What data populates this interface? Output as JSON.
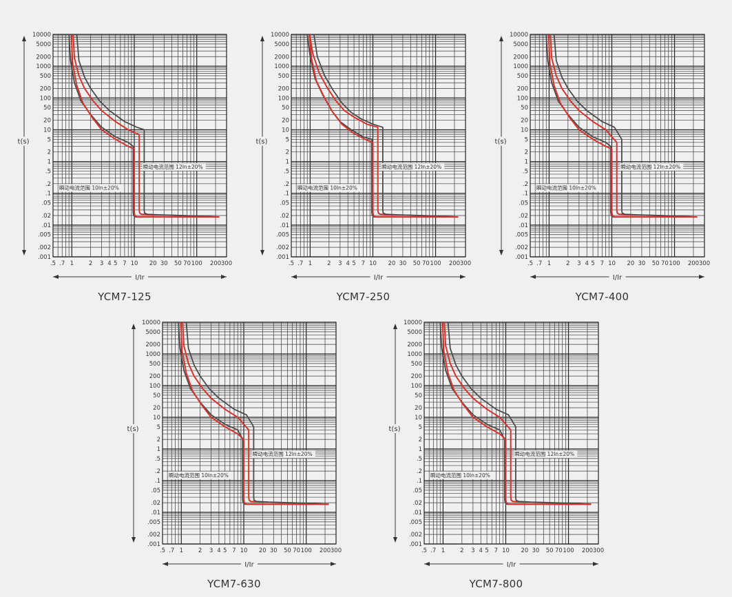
{
  "colors": {
    "background": "#f0f0f0",
    "grid": "#3a3a3a",
    "curve_red": "#d6332c",
    "curve_dark": "#4a4a4a"
  },
  "chart_data": [
    {
      "type": "line",
      "title": "YCM7-125",
      "xlabel": "I/Ir",
      "ylabel": "t(s)",
      "xscale": "log",
      "yscale": "log",
      "xlim": [
        0.5,
        300
      ],
      "ylim": [
        0.001,
        10000
      ],
      "xticks": [
        ".5",
        ".7",
        "1",
        "2",
        "3",
        "4",
        "5",
        "7",
        "10",
        "20",
        "30",
        "50",
        "70",
        "100",
        "200",
        "300"
      ],
      "yticks": [
        "10000",
        "5000",
        "2000",
        "1000",
        "500",
        "200",
        "100",
        "50",
        "20",
        "10",
        "5",
        "2",
        "1",
        ".5",
        ".2",
        ".1",
        ".05",
        ".02",
        ".01",
        ".005",
        ".002",
        ".001"
      ],
      "annotations": [
        "瞬动电流范围 12In±20%",
        "瞬动电流范围 10In±20%"
      ],
      "grid": true,
      "series": [
        {
          "color": "red",
          "x": [
            1.05,
            1.1,
            1.3,
            1.6,
            2.2,
            3,
            5,
            8,
            12,
            12,
            12.2,
            13,
            20,
            50,
            100,
            230
          ],
          "y": [
            10000,
            1800,
            500,
            200,
            80,
            40,
            18,
            10,
            7,
            0.03,
            0.024,
            0.022,
            0.021,
            0.02,
            0.019,
            0.018
          ]
        },
        {
          "color": "dark",
          "x": [
            1.2,
            1.3,
            1.6,
            2,
            2.8,
            4,
            7,
            11,
            14.4,
            14.4,
            14.6,
            16,
            25,
            60,
            120,
            230
          ],
          "y": [
            10000,
            1500,
            450,
            200,
            80,
            40,
            18,
            12,
            10,
            0.03,
            0.024,
            0.022,
            0.021,
            0.02,
            0.019,
            0.018
          ]
        },
        {
          "color": "dark",
          "x": [
            0.9,
            0.95,
            1.1,
            1.4,
            2,
            3,
            5,
            8,
            9.6,
            9.6,
            9.8,
            10.5,
            15,
            40,
            100,
            230
          ],
          "y": [
            10000,
            1500,
            300,
            80,
            30,
            12,
            6,
            4,
            3,
            0.025,
            0.02,
            0.018,
            0.018,
            0.018,
            0.018,
            0.018
          ]
        },
        {
          "color": "red",
          "x": [
            0.98,
            1.03,
            1.2,
            1.5,
            2.1,
            3,
            5,
            8,
            10,
            10,
            10.2,
            11,
            16,
            40,
            100,
            230
          ],
          "y": [
            10000,
            1200,
            250,
            70,
            25,
            10,
            5,
            3,
            2.5,
            0.025,
            0.02,
            0.018,
            0.018,
            0.018,
            0.018,
            0.018
          ]
        }
      ]
    },
    {
      "type": "line",
      "title": "YCM7-250",
      "xlabel": "I/Ir",
      "ylabel": "t(s)",
      "xscale": "log",
      "yscale": "log",
      "xlim": [
        0.5,
        300
      ],
      "ylim": [
        0.001,
        10000
      ],
      "xticks": [
        ".5",
        ".7",
        "1",
        "2",
        "3",
        "4",
        "5",
        "7",
        "10",
        "20",
        "30",
        "50",
        "70",
        "100",
        "200",
        "300"
      ],
      "yticks": [
        "10000",
        "5000",
        "2000",
        "1000",
        "500",
        "200",
        "100",
        "50",
        "20",
        "10",
        "5",
        "2",
        "1",
        ".5",
        ".2",
        ".1",
        ".05",
        ".02",
        ".01",
        ".005",
        ".002",
        ".001"
      ],
      "annotations": [
        "瞬动电流范围 12In±20%",
        "瞬动电流范围 10In±20%"
      ],
      "grid": true,
      "series": [
        {
          "color": "red",
          "x": [
            0.98,
            1.1,
            1.4,
            1.9,
            2.6,
            3.5,
            5,
            8,
            12,
            12,
            12.2,
            13,
            20,
            50,
            100,
            230
          ],
          "y": [
            10000,
            2500,
            600,
            200,
            80,
            40,
            25,
            15,
            12,
            0.03,
            0.024,
            0.022,
            0.021,
            0.02,
            0.019,
            0.018
          ]
        },
        {
          "color": "dark",
          "x": [
            1.15,
            1.3,
            1.7,
            2.3,
            3.2,
            4.5,
            6.5,
            10,
            14.4,
            14.4,
            14.6,
            16,
            25,
            60,
            120,
            230
          ],
          "y": [
            10000,
            2000,
            500,
            180,
            70,
            35,
            22,
            15,
            12,
            0.03,
            0.024,
            0.022,
            0.021,
            0.02,
            0.019,
            0.018
          ]
        },
        {
          "color": "dark",
          "x": [
            0.9,
            1.0,
            1.2,
            1.6,
            2.2,
            3,
            4.5,
            7,
            9.6,
            9.6,
            9.8,
            10.5,
            15,
            40,
            100,
            230
          ],
          "y": [
            10000,
            2000,
            400,
            120,
            40,
            18,
            10,
            6,
            5,
            0.025,
            0.02,
            0.018,
            0.018,
            0.018,
            0.018,
            0.018
          ]
        },
        {
          "color": "red",
          "x": [
            0.97,
            1.05,
            1.25,
            1.7,
            2.3,
            3.2,
            4.8,
            7.5,
            10,
            10,
            10.2,
            11,
            16,
            40,
            100,
            230
          ],
          "y": [
            10000,
            1800,
            350,
            100,
            35,
            15,
            8,
            5,
            4,
            0.025,
            0.02,
            0.018,
            0.018,
            0.018,
            0.018,
            0.018
          ]
        }
      ]
    },
    {
      "type": "line",
      "title": "YCM7-400",
      "xlabel": "I/Ir",
      "ylabel": "t(s)",
      "xscale": "log",
      "yscale": "log",
      "xlim": [
        0.5,
        300
      ],
      "ylim": [
        0.001,
        10000
      ],
      "xticks": [
        ".5",
        ".7",
        "1",
        "2",
        "3",
        "4",
        "5",
        "7",
        "10",
        "20",
        "30",
        "50",
        "70",
        "100",
        "200",
        "300"
      ],
      "yticks": [
        "10000",
        "5000",
        "2000",
        "1000",
        "500",
        "200",
        "100",
        "50",
        "20",
        "10",
        "5",
        "2",
        "1",
        ".5",
        ".2",
        ".1",
        ".05",
        ".02",
        ".01",
        ".005",
        ".002",
        ".001"
      ],
      "annotations": [
        "瞬动电流范围 12In±20%",
        "瞬动电流范围 10In±20%"
      ],
      "grid": true,
      "series": [
        {
          "color": "red",
          "x": [
            1.05,
            1.1,
            1.3,
            1.6,
            2.2,
            3,
            5,
            8,
            12,
            12,
            12.2,
            13,
            20,
            50,
            100,
            230
          ],
          "y": [
            10000,
            1800,
            500,
            200,
            80,
            40,
            18,
            10,
            4,
            0.03,
            0.024,
            0.022,
            0.021,
            0.02,
            0.019,
            0.018
          ]
        },
        {
          "color": "dark",
          "x": [
            1.2,
            1.3,
            1.6,
            2,
            2.8,
            4,
            7,
            11,
            14.4,
            14.4,
            14.6,
            16,
            25,
            60,
            120,
            230
          ],
          "y": [
            10000,
            1500,
            450,
            200,
            80,
            40,
            18,
            12,
            5,
            0.03,
            0.024,
            0.022,
            0.021,
            0.02,
            0.019,
            0.018
          ]
        },
        {
          "color": "dark",
          "x": [
            0.9,
            0.95,
            1.1,
            1.4,
            2,
            3,
            5,
            8,
            9.6,
            9.6,
            9.8,
            10.5,
            15,
            40,
            100,
            230
          ],
          "y": [
            10000,
            1500,
            300,
            80,
            30,
            12,
            6,
            4,
            3,
            0.025,
            0.02,
            0.018,
            0.018,
            0.018,
            0.018,
            0.018
          ]
        },
        {
          "color": "red",
          "x": [
            0.98,
            1.03,
            1.2,
            1.5,
            2.1,
            3,
            5,
            8,
            10,
            10,
            10.2,
            11,
            16,
            40,
            100,
            230
          ],
          "y": [
            10000,
            1200,
            250,
            70,
            25,
            10,
            5,
            3,
            2.5,
            0.025,
            0.02,
            0.018,
            0.018,
            0.018,
            0.018,
            0.018
          ]
        }
      ]
    },
    {
      "type": "line",
      "title": "YCM7-630",
      "xlabel": "I/Ir",
      "ylabel": "t(s)",
      "xscale": "log",
      "yscale": "log",
      "xlim": [
        0.5,
        300
      ],
      "ylim": [
        0.001,
        10000
      ],
      "xticks": [
        ".5",
        ".7",
        "1",
        "2",
        "3",
        "4",
        "5",
        "7",
        "10",
        "20",
        "30",
        "50",
        "70",
        "100",
        "200",
        "300"
      ],
      "yticks": [
        "10000",
        "5000",
        "2000",
        "1000",
        "500",
        "200",
        "100",
        "50",
        "20",
        "10",
        "5",
        "2",
        "1",
        ".5",
        ".2",
        ".1",
        ".05",
        ".02",
        ".01",
        ".005",
        ".002",
        ".001"
      ],
      "annotations": [
        "瞬动电流范围 12In±20%",
        "瞬动电流范围 10In±20%"
      ],
      "grid": true,
      "series": [
        {
          "color": "red",
          "x": [
            1.05,
            1.1,
            1.3,
            1.6,
            2.2,
            3,
            5,
            8,
            12,
            12,
            12.2,
            13,
            20,
            50,
            100,
            230
          ],
          "y": [
            10000,
            1800,
            500,
            200,
            80,
            40,
            18,
            10,
            4,
            0.03,
            0.024,
            0.022,
            0.021,
            0.02,
            0.019,
            0.018
          ]
        },
        {
          "color": "dark",
          "x": [
            1.2,
            1.3,
            1.6,
            2,
            2.8,
            4,
            7,
            11,
            14.4,
            14.4,
            14.6,
            16,
            25,
            60,
            120,
            230
          ],
          "y": [
            10000,
            1500,
            450,
            200,
            80,
            40,
            18,
            12,
            5,
            0.03,
            0.024,
            0.022,
            0.021,
            0.02,
            0.019,
            0.018
          ]
        },
        {
          "color": "dark",
          "x": [
            0.9,
            0.95,
            1.1,
            1.4,
            2,
            3,
            5,
            8,
            9.6,
            9.6,
            9.8,
            10.5,
            15,
            40,
            100,
            230
          ],
          "y": [
            10000,
            1500,
            300,
            80,
            30,
            12,
            6,
            4,
            2,
            0.025,
            0.02,
            0.018,
            0.018,
            0.018,
            0.018,
            0.018
          ]
        },
        {
          "color": "red",
          "x": [
            0.98,
            1.03,
            1.2,
            1.5,
            2.1,
            3,
            5,
            8,
            10,
            10,
            10.2,
            11,
            16,
            40,
            100,
            230
          ],
          "y": [
            10000,
            1200,
            250,
            70,
            25,
            10,
            5,
            3,
            2,
            0.025,
            0.02,
            0.018,
            0.018,
            0.018,
            0.018,
            0.018
          ]
        }
      ]
    },
    {
      "type": "line",
      "title": "YCM7-800",
      "xlabel": "I/Ir",
      "ylabel": "t(s)",
      "xscale": "log",
      "yscale": "log",
      "xlim": [
        0.5,
        300
      ],
      "ylim": [
        0.001,
        10000
      ],
      "xticks": [
        ".5",
        ".7",
        "1",
        "2",
        "3",
        "4",
        "5",
        "7",
        "10",
        "20",
        "30",
        "50",
        "70",
        "100",
        "200",
        "300"
      ],
      "yticks": [
        "10000",
        "5000",
        "2000",
        "1000",
        "500",
        "200",
        "100",
        "50",
        "20",
        "10",
        "5",
        "2",
        "1",
        ".5",
        ".2",
        ".1",
        ".05",
        ".02",
        ".01",
        ".005",
        ".002",
        ".001"
      ],
      "annotations": [
        "瞬动电流范围 12In±20%",
        "瞬动电流范围 10In±20%"
      ],
      "grid": true,
      "series": [
        {
          "color": "red",
          "x": [
            1.05,
            1.1,
            1.3,
            1.6,
            2.2,
            3,
            5,
            8,
            12,
            12,
            12.2,
            13,
            20,
            50,
            100,
            230
          ],
          "y": [
            10000,
            1800,
            500,
            200,
            80,
            40,
            18,
            10,
            4,
            0.03,
            0.024,
            0.022,
            0.021,
            0.02,
            0.019,
            0.018
          ]
        },
        {
          "color": "dark",
          "x": [
            1.2,
            1.3,
            1.6,
            2,
            2.8,
            4,
            7,
            11,
            14.4,
            14.4,
            14.6,
            16,
            25,
            60,
            120,
            230
          ],
          "y": [
            10000,
            1500,
            450,
            200,
            80,
            40,
            18,
            12,
            5,
            0.03,
            0.024,
            0.022,
            0.021,
            0.02,
            0.019,
            0.018
          ]
        },
        {
          "color": "dark",
          "x": [
            0.9,
            0.95,
            1.1,
            1.4,
            2,
            3,
            5,
            8,
            9.6,
            9.6,
            9.8,
            10.5,
            15,
            40,
            100,
            230
          ],
          "y": [
            10000,
            1500,
            300,
            80,
            30,
            12,
            6,
            4,
            2,
            0.025,
            0.02,
            0.018,
            0.018,
            0.018,
            0.018,
            0.018
          ]
        },
        {
          "color": "red",
          "x": [
            0.98,
            1.03,
            1.2,
            1.5,
            2.1,
            3,
            5,
            8,
            10,
            10,
            10.2,
            11,
            16,
            40,
            100,
            230
          ],
          "y": [
            10000,
            1200,
            250,
            70,
            25,
            10,
            5,
            3,
            2,
            0.025,
            0.02,
            0.018,
            0.018,
            0.018,
            0.018,
            0.018
          ]
        }
      ]
    }
  ]
}
